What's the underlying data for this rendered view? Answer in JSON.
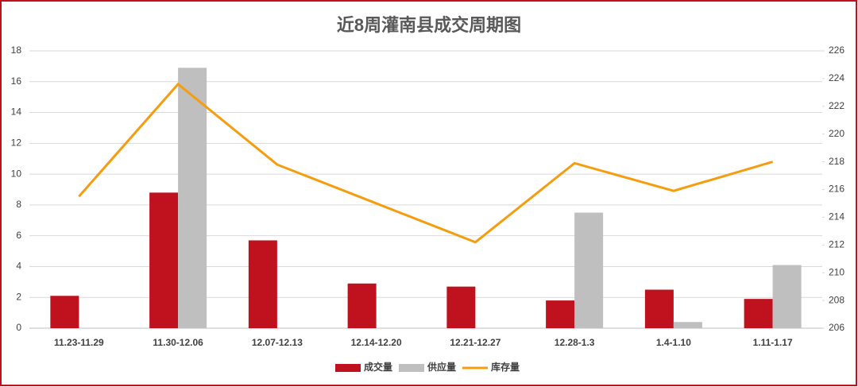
{
  "chart_data": {
    "type": "bar",
    "title": "近8周灌南县成交周期图",
    "categories": [
      "11.23-11.29",
      "11.30-12.06",
      "12.07-12.13",
      "12.14-12.20",
      "12.21-12.27",
      "12.28-1.3",
      "1.4-1.10",
      "1.11-1.17"
    ],
    "series": [
      {
        "name": "成交量",
        "color": "#c0111f",
        "values": [
          2.1,
          8.8,
          5.7,
          2.9,
          2.7,
          1.8,
          2.5,
          1.9
        ]
      },
      {
        "name": "供应量",
        "color": "#bfbfbf",
        "values": [
          0,
          16.9,
          0,
          0,
          0,
          7.5,
          0.4,
          4.1
        ]
      },
      {
        "name": "库存量",
        "color": "#f59d0f",
        "type": "line",
        "axis": "y2",
        "values": [
          215.5,
          223.6,
          217.8,
          215.0,
          212.2,
          217.9,
          215.9,
          218.0
        ]
      }
    ],
    "ylim": [
      0,
      18
    ],
    "yticks": [
      0,
      2,
      4,
      6,
      8,
      10,
      12,
      14,
      16,
      18
    ],
    "y2lim": [
      206,
      226
    ],
    "y2ticks": [
      206,
      208,
      210,
      212,
      214,
      216,
      218,
      220,
      222,
      224,
      226
    ],
    "grid": true,
    "legend": "bottom"
  }
}
